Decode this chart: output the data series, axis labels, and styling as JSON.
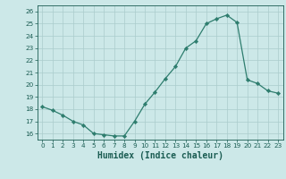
{
  "x": [
    0,
    1,
    2,
    3,
    4,
    5,
    6,
    7,
    8,
    9,
    10,
    11,
    12,
    13,
    14,
    15,
    16,
    17,
    18,
    19,
    20,
    21,
    22,
    23
  ],
  "y": [
    18.2,
    17.9,
    17.5,
    17.0,
    16.7,
    16.0,
    15.9,
    15.8,
    15.8,
    17.0,
    18.4,
    19.4,
    20.5,
    21.5,
    23.0,
    23.6,
    25.0,
    25.4,
    25.7,
    25.1,
    20.4,
    20.1,
    19.5,
    19.3
  ],
  "xlabel": "Humidex (Indice chaleur)",
  "xlim": [
    -0.5,
    23.5
  ],
  "ylim": [
    15.5,
    26.5
  ],
  "yticks": [
    16,
    17,
    18,
    19,
    20,
    21,
    22,
    23,
    24,
    25,
    26
  ],
  "xticks": [
    0,
    1,
    2,
    3,
    4,
    5,
    6,
    7,
    8,
    9,
    10,
    11,
    12,
    13,
    14,
    15,
    16,
    17,
    18,
    19,
    20,
    21,
    22,
    23
  ],
  "line_color": "#2e7d6e",
  "marker_color": "#2e7d6e",
  "bg_color": "#cce8e8",
  "grid_color": "#aacccc",
  "axis_label_color": "#1a5c52",
  "tick_color": "#1a5c52",
  "xlabel_fontsize": 7.0,
  "tick_fontsize": 5.2
}
